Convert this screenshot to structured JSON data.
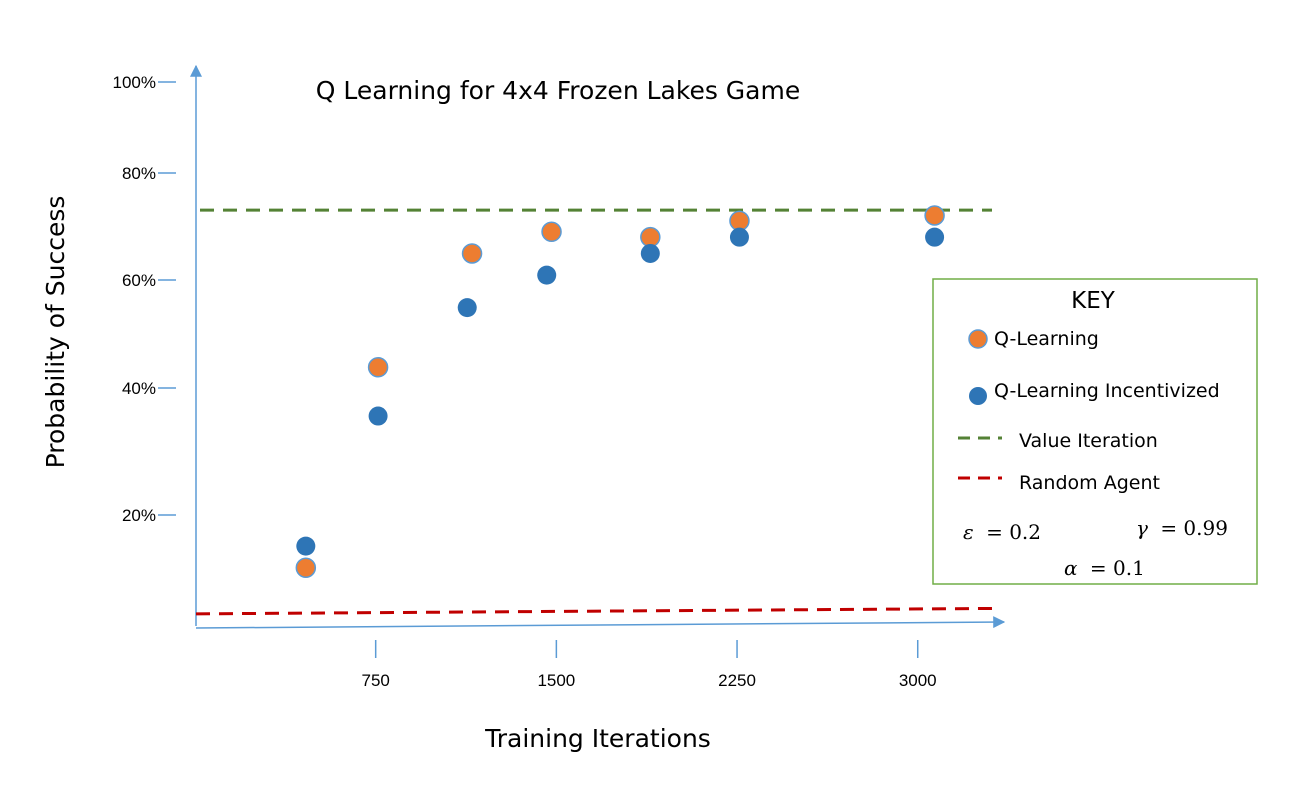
{
  "chart_data": {
    "type": "scatter",
    "title": "Q Learning for 4x4 Frozen Lakes Game",
    "xlabel": "Training Iterations",
    "ylabel": "Probability of Success",
    "xlim": [
      0,
      3300
    ],
    "ylim": [
      0,
      100
    ],
    "x_ticks": [
      750,
      1500,
      2250,
      3000
    ],
    "x_tick_labels": [
      "750",
      "1500",
      "2250",
      "3000"
    ],
    "y_ticks": [
      20,
      40,
      60,
      80,
      100
    ],
    "y_tick_labels": [
      "20%",
      "40%",
      "60%",
      "80%",
      "100%"
    ],
    "series": [
      {
        "name": "Q-Learning",
        "color": "#ED7D31",
        "points": [
          {
            "x": 460,
            "y": 10
          },
          {
            "x": 760,
            "y": 47
          },
          {
            "x": 1150,
            "y": 68
          },
          {
            "x": 1480,
            "y": 72
          },
          {
            "x": 1890,
            "y": 71
          },
          {
            "x": 2260,
            "y": 74
          },
          {
            "x": 3070,
            "y": 75
          }
        ]
      },
      {
        "name": "Q-Learning Incentivized",
        "color": "#2E75B6",
        "points": [
          {
            "x": 460,
            "y": 14
          },
          {
            "x": 760,
            "y": 38
          },
          {
            "x": 1130,
            "y": 58
          },
          {
            "x": 1460,
            "y": 64
          },
          {
            "x": 1890,
            "y": 68
          },
          {
            "x": 2260,
            "y": 71
          },
          {
            "x": 3070,
            "y": 71
          }
        ]
      }
    ],
    "reference_lines": [
      {
        "name": "Value Iteration",
        "color": "#548235",
        "y_start": 76,
        "y_end": 76
      },
      {
        "name": "Random Agent",
        "color": "#C00000",
        "y_start": 1.5,
        "y_end": 2.5
      }
    ],
    "legend": {
      "title": "KEY",
      "placement": "right",
      "border_color": "#70AD47",
      "items": [
        {
          "label": "Q-Learning",
          "kind": "marker",
          "color": "#ED7D31"
        },
        {
          "label": "Q-Learning Incentivized",
          "kind": "marker",
          "color": "#2E75B6"
        },
        {
          "label": "Value Iteration",
          "kind": "dash",
          "color": "#548235"
        },
        {
          "label": "Random Agent",
          "kind": "dash",
          "color": "#C00000"
        }
      ],
      "params": {
        "epsilon": {
          "symbol": "ε",
          "text": "= 0.2"
        },
        "gamma": {
          "symbol": "γ",
          "text": "= 0.99"
        },
        "alpha": {
          "symbol": "α",
          "text": "= 0.1"
        }
      }
    },
    "axis_color": "#5B9BD5",
    "grid": false
  }
}
